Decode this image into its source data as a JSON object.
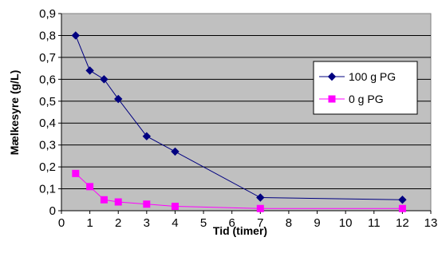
{
  "chart_data": {
    "type": "line",
    "xlabel": "Tid (timer)",
    "ylabel": "Mælkesyre (g/L)",
    "xlim": [
      0,
      13
    ],
    "ylim": [
      0,
      0.9
    ],
    "x_ticks": [
      "0",
      "1",
      "2",
      "3",
      "4",
      "5",
      "6",
      "7",
      "8",
      "9",
      "10",
      "11",
      "12",
      "13"
    ],
    "y_ticks": [
      "0",
      "0,1",
      "0,2",
      "0,3",
      "0,4",
      "0,5",
      "0,6",
      "0,7",
      "0,8",
      "0,9"
    ],
    "grid": "horizontal",
    "legend_position": "right",
    "background_color": "#c0c0c0",
    "series": [
      {
        "name": "100 g PG",
        "color": "#000080",
        "marker": "diamond",
        "x": [
          0.5,
          1,
          1.5,
          2,
          3,
          4,
          7,
          12
        ],
        "y": [
          0.8,
          0.64,
          0.6,
          0.51,
          0.34,
          0.27,
          0.06,
          0.05
        ]
      },
      {
        "name": "0 g PG",
        "color": "#ff00ff",
        "marker": "square",
        "x": [
          0.5,
          1,
          1.5,
          2,
          3,
          4,
          7,
          12
        ],
        "y": [
          0.17,
          0.11,
          0.05,
          0.04,
          0.03,
          0.02,
          0.01,
          0.01
        ]
      }
    ]
  }
}
